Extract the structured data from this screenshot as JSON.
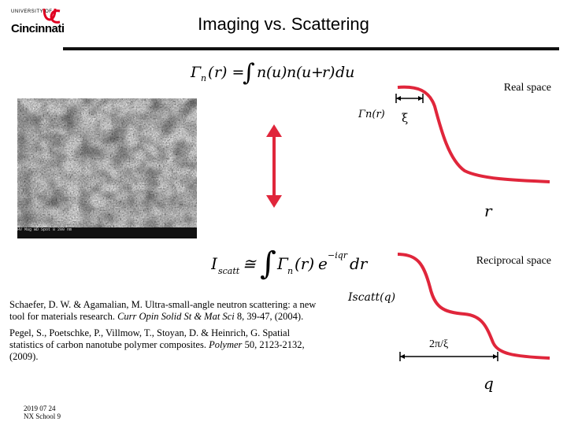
{
  "logo": {
    "university": "UNIVERSITY OF",
    "name": "Cincinnati",
    "mark_color": "#e00122"
  },
  "title": "Imaging vs. Scattering",
  "formula_top": {
    "lhs": "Γn(r) = ∫ n(u)n(u + r)du"
  },
  "formula_bottom": {
    "lhs": "Iscatt ≅ ∫ Γn(r) e−iqr dr"
  },
  "sem_image": {
    "info_bar": "HV   Mag   WD   Spot   8   200 nm"
  },
  "real_space": {
    "label": "Real space",
    "y_label": "Γn(r)",
    "x_label": "r",
    "correlation_length": "ξ",
    "color": "#e0263b"
  },
  "reciprocal_space": {
    "label": "Reciprocal space",
    "y_label": "Iscatt(q)",
    "x_label": "q",
    "bracket_label": "2π/ξ",
    "color": "#e0263b"
  },
  "references": [
    {
      "text": "Schaefer, D. W. & Agamalian, M. Ultra-small-angle neutron scattering: a new tool for materials research.",
      "journal": "Curr Opin Solid St & Mat Sci",
      "details": "8, 39-47, (2004)."
    },
    {
      "text": "Pegel, S., Poetschke, P., Villmow, T., Stoyan, D. & Heinrich, G. Spatial statistics of carbon nanotube polymer composites.",
      "journal": "Polymer",
      "details": "50, 2123-2132, (2009)."
    }
  ],
  "footer": {
    "date": "2019 07 24",
    "event": "NX School 9"
  },
  "arrow_color": "#e0263b"
}
